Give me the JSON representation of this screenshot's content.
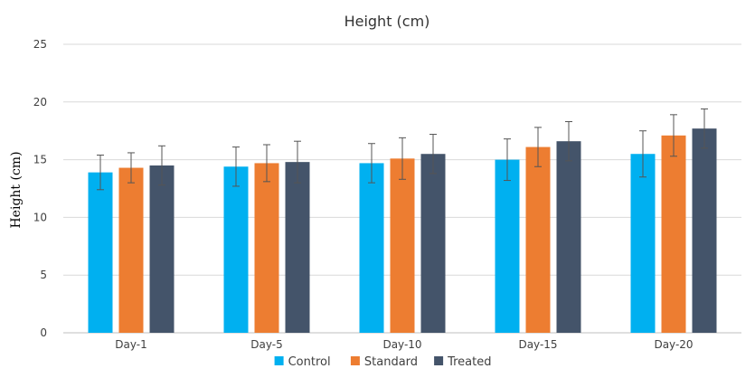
{
  "chart_data": {
    "type": "bar",
    "title": "Height (cm)",
    "xlabel": "",
    "ylabel": "Height (cm)",
    "ylim": [
      0,
      25
    ],
    "yticks": [
      0,
      5,
      10,
      15,
      20,
      25
    ],
    "grid": true,
    "legend_position": "bottom",
    "categories": [
      "Day-1",
      "Day-5",
      "Day-10",
      "Day-15",
      "Day-20"
    ],
    "series": [
      {
        "name": "Control",
        "color": "#00b0f0",
        "values": [
          13.9,
          14.4,
          14.7,
          15.0,
          15.5
        ],
        "error": [
          1.5,
          1.7,
          1.7,
          1.8,
          2.0
        ]
      },
      {
        "name": "Standard",
        "color": "#ed7d31",
        "values": [
          14.3,
          14.7,
          15.1,
          16.1,
          17.1
        ],
        "error": [
          1.3,
          1.6,
          1.8,
          1.7,
          1.8
        ]
      },
      {
        "name": "Treated",
        "color": "#44546a",
        "values": [
          14.5,
          14.8,
          15.5,
          16.6,
          17.7
        ],
        "error": [
          1.7,
          1.8,
          1.7,
          1.7,
          1.7
        ]
      }
    ]
  }
}
